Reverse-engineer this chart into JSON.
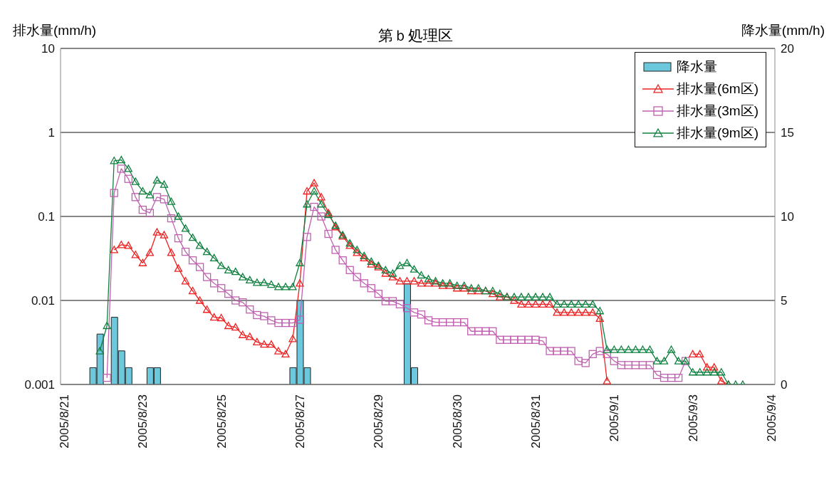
{
  "chart_data": {
    "type": "line",
    "title": "第ｂ処理区",
    "ylabel": "排水量(mm/h)",
    "y2label": "降水量(mm/h)",
    "categories": [
      "2005/8/21",
      null,
      null,
      null,
      null,
      null,
      null,
      null,
      null,
      null,
      null,
      "2005/8/23",
      null,
      null,
      null,
      null,
      null,
      null,
      null,
      null,
      null,
      null,
      "2005/8/25",
      null,
      null,
      null,
      null,
      null,
      null,
      null,
      null,
      null,
      null,
      "2005/8/27",
      null,
      null,
      null,
      null,
      null,
      null,
      null,
      null,
      null,
      null,
      "2005/8/29",
      null,
      null,
      null,
      null,
      null,
      null,
      null,
      null,
      null,
      null,
      "2005/8/30",
      null,
      null,
      null,
      null,
      null,
      null,
      null,
      null,
      null,
      null,
      "2005/8/31",
      null,
      null,
      null,
      null,
      null,
      null,
      null,
      null,
      null,
      null,
      "2005/9/1",
      null,
      null,
      null,
      null,
      null,
      null,
      null,
      null,
      null,
      null,
      "2005/9/3",
      null,
      null,
      null,
      null,
      null,
      null,
      null,
      null,
      null,
      null,
      "2005/9/4"
    ],
    "series": [
      {
        "name": "降水量",
        "type": "bar",
        "axis": "y2",
        "color": "#6cc8dc",
        "values": [
          null,
          null,
          null,
          null,
          1,
          3,
          null,
          4,
          2,
          1,
          null,
          null,
          1,
          1,
          null,
          null,
          null,
          null,
          null,
          null,
          null,
          null,
          null,
          null,
          null,
          null,
          null,
          null,
          null,
          null,
          null,
          null,
          1,
          5,
          1,
          null,
          null,
          null,
          null,
          null,
          null,
          null,
          null,
          null,
          null,
          null,
          null,
          null,
          6,
          1,
          null,
          null,
          null,
          null,
          null,
          null,
          null,
          null,
          null,
          null,
          null,
          null,
          null,
          null,
          null,
          null,
          null,
          null,
          null,
          null,
          null,
          null,
          null,
          null,
          null,
          null,
          null,
          null,
          null,
          null,
          null,
          null,
          null,
          null,
          null,
          null,
          null,
          null,
          null,
          null,
          null,
          null,
          null,
          null,
          null,
          null,
          null,
          null,
          null,
          null
        ]
      },
      {
        "name": "排水量(6m区)",
        "marker": "triangle",
        "color": "#ee2222",
        "values": [
          null,
          null,
          null,
          null,
          null,
          null,
          null,
          0.04,
          0.046,
          0.045,
          0.035,
          0.028,
          0.037,
          0.065,
          0.06,
          0.037,
          0.024,
          0.017,
          0.013,
          0.01,
          0.0078,
          0.0063,
          0.0062,
          0.005,
          0.0048,
          0.0039,
          0.0037,
          0.0032,
          0.003,
          0.003,
          0.0025,
          0.0023,
          0.0035,
          0.016,
          0.2,
          0.25,
          0.17,
          0.11,
          0.075,
          0.058,
          0.045,
          0.037,
          0.032,
          0.027,
          0.025,
          0.021,
          0.019,
          0.017,
          0.017,
          0.017,
          0.016,
          0.016,
          0.016,
          0.015,
          0.015,
          0.014,
          0.014,
          0.013,
          0.013,
          0.013,
          0.012,
          0.011,
          0.011,
          0.01,
          0.009,
          0.009,
          0.009,
          0.009,
          0.009,
          0.0072,
          0.0072,
          0.0072,
          0.0072,
          0.0072,
          0.0072,
          0.0061,
          0.0011,
          null,
          null,
          null,
          null,
          null,
          null,
          null,
          null,
          null,
          null,
          null,
          0.0023,
          0.0023,
          0.0016,
          0.0016,
          0.0011,
          0.001,
          null,
          null,
          null,
          null,
          null,
          null
        ]
      },
      {
        "name": "排水量(3m区)",
        "marker": "square",
        "color": "#c060b0",
        "values": [
          null,
          null,
          null,
          null,
          null,
          null,
          0.0012,
          0.19,
          0.37,
          0.28,
          0.17,
          0.12,
          0.11,
          0.17,
          0.16,
          0.095,
          0.055,
          0.038,
          0.03,
          0.025,
          0.019,
          0.016,
          0.014,
          0.012,
          0.01,
          0.0095,
          0.0078,
          0.0067,
          0.0065,
          0.0058,
          0.0054,
          0.0054,
          0.0054,
          0.0059,
          0.057,
          0.13,
          0.1,
          0.062,
          0.04,
          0.03,
          0.023,
          0.019,
          0.016,
          0.014,
          0.012,
          0.0098,
          0.0098,
          0.009,
          0.0081,
          0.0072,
          0.0068,
          0.0058,
          0.0055,
          0.0055,
          0.0055,
          0.0055,
          0.0055,
          0.0043,
          0.0043,
          0.0043,
          0.0043,
          0.0034,
          0.0034,
          0.0034,
          0.0034,
          0.0034,
          0.0034,
          0.0033,
          0.0025,
          0.0025,
          0.0025,
          0.0025,
          0.0019,
          0.0018,
          0.0023,
          0.0025,
          0.0023,
          0.0019,
          0.0017,
          0.0017,
          0.0017,
          0.0017,
          0.0017,
          0.0013,
          0.0012,
          0.0012,
          0.0012,
          0.0019,
          null,
          null,
          null,
          null,
          null,
          null,
          null,
          null,
          null,
          null,
          null,
          null
        ]
      },
      {
        "name": "排水量(9m区)",
        "marker": "triangle",
        "color": "#108040",
        "values": [
          null,
          null,
          null,
          null,
          null,
          0.0025,
          0.005,
          0.46,
          0.47,
          0.37,
          0.26,
          0.2,
          0.18,
          0.27,
          0.24,
          0.15,
          0.1,
          0.072,
          0.056,
          0.045,
          0.038,
          0.032,
          0.026,
          0.023,
          0.022,
          0.019,
          0.0175,
          0.0163,
          0.0163,
          0.0155,
          0.0145,
          0.0145,
          0.0145,
          0.028,
          0.14,
          0.2,
          0.14,
          0.105,
          0.078,
          0.06,
          0.048,
          0.04,
          0.034,
          0.029,
          0.026,
          0.023,
          0.021,
          0.026,
          0.028,
          0.0235,
          0.02,
          0.018,
          0.017,
          0.016,
          0.016,
          0.015,
          0.015,
          0.014,
          0.014,
          0.013,
          0.013,
          0.012,
          0.011,
          0.011,
          0.011,
          0.011,
          0.011,
          0.011,
          0.011,
          0.009,
          0.009,
          0.009,
          0.009,
          0.009,
          0.009,
          0.0075,
          0.0026,
          0.0026,
          0.0026,
          0.0026,
          0.0026,
          0.0026,
          0.0026,
          0.0019,
          0.0019,
          0.0026,
          0.0019,
          0.0019,
          0.0014,
          0.0014,
          0.0014,
          0.0014,
          0.0014,
          0.001,
          0.001,
          0.001,
          null,
          null,
          null,
          null
        ]
      }
    ],
    "log": "y",
    "ylim": [
      0.001,
      10
    ],
    "yticks": [
      0.001,
      0.01,
      0.1,
      1,
      10
    ],
    "y2lim": [
      0,
      20
    ],
    "y2ticks": [
      0,
      5,
      10,
      15,
      20
    ],
    "grid": "y",
    "legend": "top right"
  }
}
